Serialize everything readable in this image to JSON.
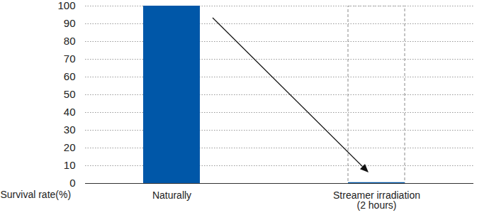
{
  "chart_data": {
    "type": "bar",
    "ylabel": "Survival rate(%)",
    "categories": [
      "Naturally",
      "Streamer irradiation\n(2 hours)"
    ],
    "values": [
      100,
      0.5
    ],
    "color": "#0057a8",
    "ylim": [
      0,
      100
    ],
    "yticks": [
      0,
      10,
      20,
      30,
      40,
      50,
      60,
      70,
      80,
      90,
      100
    ],
    "grid": true
  }
}
